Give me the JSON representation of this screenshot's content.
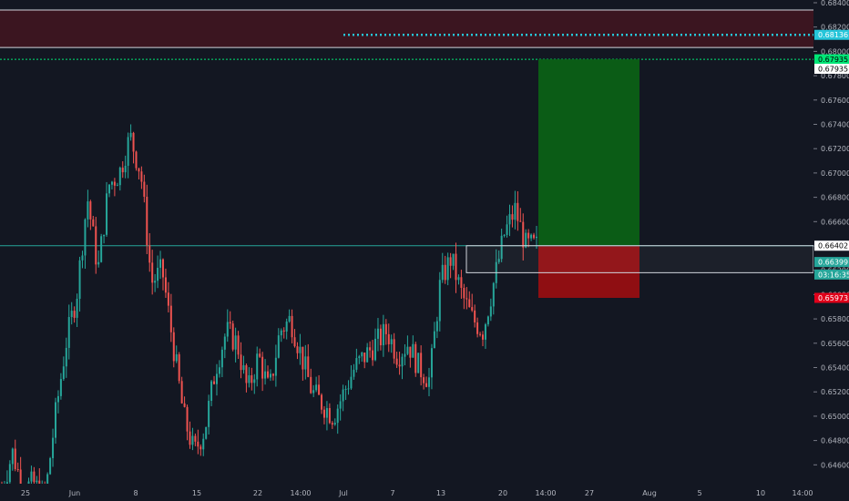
{
  "chart_data": {
    "type": "candlestick",
    "colors": {
      "background": "#131722",
      "up": "#26a69a",
      "down": "#ef5350",
      "axis_text": "#b2b5be",
      "zone_fill": "#3b1520",
      "profit_fill": "#0b5c16",
      "loss_fill": "#8f0e12",
      "current_line": "#26a69a",
      "entry_dotted": "#00e676",
      "target_dotted": "#26c6da"
    },
    "y_axis": {
      "range": [
        0.6446,
        0.684
      ],
      "ticks": [
        "0.68400",
        "0.68200",
        "0.68000",
        "0.67800",
        "0.67600",
        "0.67400",
        "0.67200",
        "0.67000",
        "0.66800",
        "0.66600",
        "0.66400",
        "0.66200",
        "0.66000",
        "0.65800",
        "0.65600",
        "0.65400",
        "0.65200",
        "0.65000",
        "0.64800",
        "0.64600"
      ]
    },
    "x_axis": {
      "ticks": [
        "25",
        "Jun",
        "8",
        "15",
        "22",
        "14:00",
        "Jul",
        "7",
        "13",
        "20",
        "14:00",
        "27",
        "Aug",
        "5",
        "10",
        "14:00"
      ]
    },
    "price_tags": [
      {
        "label": "0.68136",
        "value": 0.68136,
        "bg": "#26c6da",
        "fg": "#ffffff"
      },
      {
        "label": "0.67935",
        "value": 0.67935,
        "bg": "#00e676",
        "fg": "#000000"
      },
      {
        "label": "0.67935",
        "value": 0.67857,
        "bg": "#ffffff",
        "fg": "#000000"
      },
      {
        "label": "0.66402",
        "value": 0.66402,
        "bg": "#ffffff",
        "fg": "#000000"
      },
      {
        "label": "0.66399",
        "value": 0.66268,
        "bg": "#26a69a",
        "fg": "#ffffff"
      },
      {
        "label": "03:16:35",
        "value": 0.66165,
        "bg": "#26a69a",
        "fg": "#ffffff"
      },
      {
        "label": "0.65973",
        "value": 0.65973,
        "bg": "#e0001a",
        "fg": "#ffffff"
      }
    ],
    "zones": {
      "resistance": [
        0.68032,
        0.6834
      ],
      "entry": 0.67935,
      "target": 0.68136,
      "current_price": 0.66402,
      "position_box": {
        "entry": 0.66402,
        "take_profit": 0.67935,
        "stop_loss": 0.65973
      },
      "consolidation": [
        0.6618,
        0.66402
      ]
    },
    "candle_anchors": [
      [
        0.644,
        0.6438
      ],
      [
        0.647,
        0.647
      ],
      [
        0.644,
        0.644
      ],
      [
        0.6445,
        0.644
      ],
      [
        0.643,
        0.644
      ],
      [
        0.65,
        0.65
      ],
      [
        0.656,
        0.656
      ],
      [
        0.66,
        0.66
      ],
      [
        0.668,
        0.667
      ],
      [
        0.662,
        0.661
      ],
      [
        0.669,
        0.668
      ],
      [
        0.67,
        0.671
      ],
      [
        0.673,
        0.671
      ],
      [
        0.67,
        0.672
      ],
      [
        0.661,
        0.662
      ],
      [
        0.662,
        0.661
      ],
      [
        0.656,
        0.655
      ],
      [
        0.65,
        0.652
      ],
      [
        0.647,
        0.645
      ],
      [
        0.649,
        0.65
      ],
      [
        0.654,
        0.653
      ],
      [
        0.657,
        0.656
      ],
      [
        0.656,
        0.654
      ],
      [
        0.652,
        0.654
      ],
      [
        0.655,
        0.656
      ],
      [
        0.652,
        0.651
      ],
      [
        0.657,
        0.656
      ],
      [
        0.658,
        0.659
      ],
      [
        0.655,
        0.654
      ],
      [
        0.652,
        0.653
      ],
      [
        0.651,
        0.65
      ],
      [
        0.65,
        0.651
      ],
      [
        0.652,
        0.653
      ],
      [
        0.654,
        0.655
      ],
      [
        0.655,
        0.656
      ],
      [
        0.656,
        0.657
      ],
      [
        0.657,
        0.656
      ],
      [
        0.655,
        0.654
      ],
      [
        0.656,
        0.655
      ],
      [
        0.654,
        0.655
      ],
      [
        0.653,
        0.654
      ],
      [
        0.661,
        0.66
      ],
      [
        0.663,
        0.662
      ],
      [
        0.66,
        0.659
      ],
      [
        0.658,
        0.656
      ],
      [
        0.657,
        0.658
      ],
      [
        0.661,
        0.662
      ],
      [
        0.665,
        0.664
      ],
      [
        0.667,
        0.668
      ],
      [
        0.664,
        0.664
      ],
      [
        0.664,
        0.664
      ]
    ]
  }
}
